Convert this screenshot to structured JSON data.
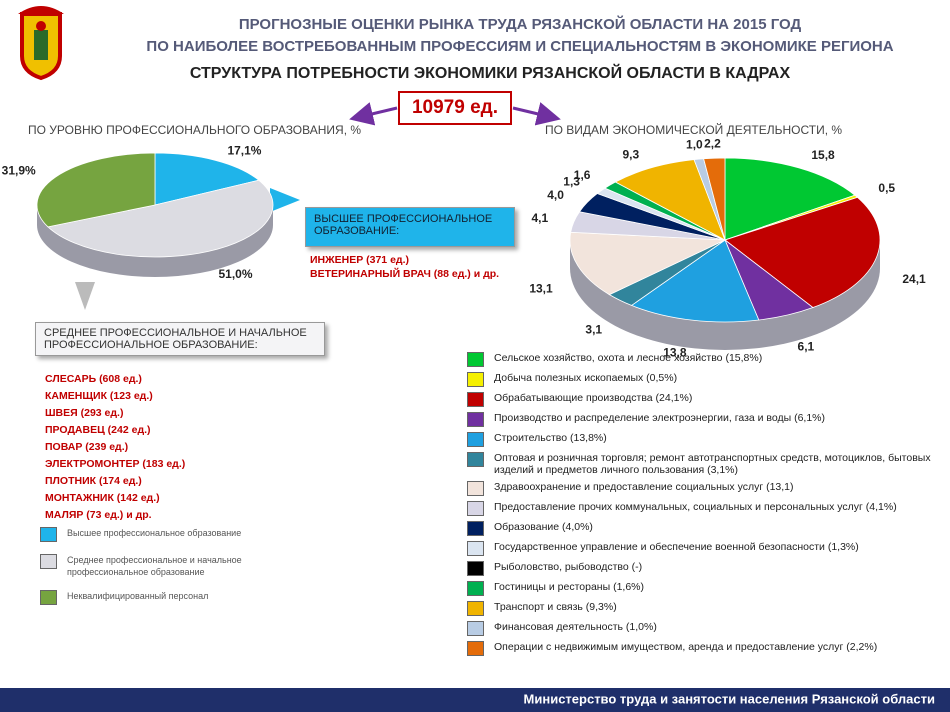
{
  "header": {
    "title_line1": "ПРОГНОЗНЫЕ ОЦЕНКИ РЫНКА ТРУДА РЯЗАНСКОЙ ОБЛАСТИ НА 2015 ГОД",
    "title_line2": "ПО НАИБОЛЕЕ ВОСТРЕБОВАННЫМ ПРОФЕССИЯМ И СПЕЦИАЛЬНОСТЯМ В ЭКОНОМИКЕ РЕГИОНА",
    "subtitle": "СТРУКТУРА ПОТРЕБНОСТИ ЭКОНОМИКИ РЯЗАНСКОЙ ОБЛАСТИ В КАДРАХ",
    "total": "10979 ед."
  },
  "higher_box": {
    "title": "ВЫСШЕЕ ПРОФЕССИОНАЛЬНОЕ ОБРАЗОВАНИЕ:",
    "items": [
      "ИНЖЕНЕР (371 ед.)",
      "ВЕТЕРИНАРНЫЙ ВРАЧ (88 ед.) и др."
    ]
  },
  "secondary_box": {
    "title": "СРЕДНЕЕ ПРОФЕССИОНАЛЬНОЕ И НАЧАЛЬНОЕ ПРОФЕССИОНАЛЬНОЕ ОБРАЗОВАНИЕ:",
    "items": [
      "СЛЕСАРЬ (608 ед.)",
      "КАМЕНЩИК (123 ед.)",
      "ШВЕЯ (293 ед.)",
      "ПРОДАВЕЦ (242 ед.)",
      "ПОВАР (239 ед.)",
      "ЭЛЕКТРОМОНТЕР (183 ед.)",
      "ПЛОТНИК (174 ед.)",
      "МОНТАЖНИК (142 ед.)",
      "МАЛЯР (73 ед.) и др."
    ]
  },
  "chart_data": [
    {
      "type": "pie",
      "title": "ПО УРОВНЮ ПРОФЕССИОНАЛЬНОГО ОБРАЗОВАНИЯ, %",
      "categories": [
        "Высшее профессиональное образование",
        "Среднее профессиональное и начальное профессиональное образование",
        "Неквалифицированный персонал"
      ],
      "values": [
        17.1,
        51.0,
        31.9
      ],
      "value_labels": [
        "17,1%",
        "51,0%",
        "31,9%"
      ],
      "colors": [
        "#1fb4ea",
        "#dcdce2",
        "#76a440"
      ]
    },
    {
      "type": "pie",
      "title": "ПО ВИДАМ ЭКОНОМИЧЕСКОЙ ДЕЯТЕЛЬНОСТИ, %",
      "categories": [
        "Сельское хозяйство, охота и лесное хозяйство (15,8%)",
        "Добыча полезных ископаемых (0,5%)",
        "Обрабатывающие производства (24,1%)",
        "Производство и распределение электроэнергии, газа и воды (6,1%)",
        "Строительство (13,8%)",
        "Оптовая и розничная торговля; ремонт автотранспортных средств, мотоциклов, бытовых изделий и предметов личного пользования (3,1%)",
        "Здравоохранение и предоставление социальных услуг (13,1)",
        "Предоставление прочих коммунальных, социальных и персональных услуг (4,1%)",
        "Образование (4,0%)",
        "Государственное управление и обеспечение военной безопасности (1,3%)",
        "Рыболовство, рыбоводство (-)",
        "Гостиницы и рестораны (1,6%)",
        "Транспорт и связь (9,3%)",
        "Финансовая деятельность (1,0%)",
        "Операции с недвижимым имуществом, аренда и предоставление услуг (2,2%)"
      ],
      "values": [
        15.8,
        0.5,
        24.1,
        6.1,
        13.8,
        3.1,
        13.1,
        4.1,
        4.0,
        1.3,
        null,
        1.6,
        9.3,
        1.0,
        2.2
      ],
      "value_labels": [
        "15,8",
        "0,5",
        "24,1",
        "6,1",
        "13,8",
        "3,1",
        "13,1",
        "4,1",
        "4,0",
        "1,3",
        null,
        "1,6",
        "9,3",
        "1,0",
        "2,2"
      ],
      "colors": [
        "#00c832",
        "#f5f000",
        "#c00000",
        "#7030a0",
        "#1fa0e0",
        "#31859c",
        "#f2e4dc",
        "#d8d6e6",
        "#002060",
        "#dbe5f1",
        "#000000",
        "#00b050",
        "#f0b400",
        "#b8cce4",
        "#e46c0a"
      ]
    }
  ],
  "footer": "Министерство труда и занятости населения Рязанской области"
}
